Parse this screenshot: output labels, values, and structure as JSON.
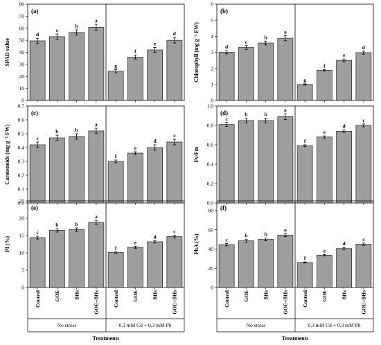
{
  "chart_data": [
    {
      "type": "bar",
      "panel": "(a)",
      "ylabel": "SPAD value",
      "ylim": [
        0,
        80
      ],
      "yticks": [
        0,
        10,
        20,
        30,
        40,
        50,
        60,
        70,
        80
      ],
      "categories": [
        "Control",
        "GOE",
        "BHs",
        "GOE+BHs",
        "Control",
        "GOE",
        "BHs",
        "GOE+BHs"
      ],
      "values": [
        49.5,
        53,
        56.5,
        60.8,
        24.3,
        36,
        42,
        50
      ],
      "errors": [
        2.2,
        2.2,
        2.2,
        2.5,
        1.3,
        1.6,
        2,
        2.3
      ],
      "letters": [
        "d",
        "c",
        "b",
        "a",
        "g",
        "f",
        "e",
        "d"
      ]
    },
    {
      "type": "bar",
      "panel": "(b)",
      "ylabel": "Chlorophyll (mg g⁻¹ FW)",
      "ylim": [
        0,
        6
      ],
      "yticks": [
        0,
        1,
        2,
        3,
        4,
        5,
        6
      ],
      "categories": [
        "Control",
        "GOE",
        "BHs",
        "GOE+BHs",
        "Control",
        "GOE",
        "BHs",
        "GOE+BHs"
      ],
      "values": [
        3.0,
        3.3,
        3.58,
        3.88,
        1.0,
        1.88,
        2.5,
        2.98
      ],
      "errors": [
        0.1,
        0.12,
        0.12,
        0.16,
        0.04,
        0.05,
        0.08,
        0.09
      ],
      "letters": [
        "d",
        "c",
        "b",
        "a",
        "g",
        "f",
        "e",
        "d"
      ]
    },
    {
      "type": "bar",
      "panel": "(c)",
      "ylabel": "Carotenoids (mg g⁻¹ FW)",
      "ylim": [
        0,
        0.7
      ],
      "yticks": [
        0.0,
        0.1,
        0.2,
        0.3,
        0.4,
        0.5,
        0.6,
        0.7
      ],
      "categories": [
        "Control",
        "GOE",
        "BHs",
        "GOE+BHs",
        "Control",
        "GOE",
        "BHs",
        "GOE+BHs"
      ],
      "values": [
        0.42,
        0.47,
        0.48,
        0.52,
        0.3,
        0.36,
        0.4,
        0.44
      ],
      "errors": [
        0.02,
        0.02,
        0.02,
        0.02,
        0.01,
        0.01,
        0.02,
        0.02
      ],
      "letters": [
        "c",
        "b",
        "b",
        "a",
        "f",
        "e",
        "d",
        "c"
      ]
    },
    {
      "type": "bar",
      "panel": "(d)",
      "ylabel": "Fv/Fm",
      "ylim": [
        0,
        1.0
      ],
      "yticks": [
        0.0,
        0.2,
        0.4,
        0.6,
        0.8,
        1.0
      ],
      "categories": [
        "Control",
        "GOE",
        "BHs",
        "GOE+BHs",
        "Control",
        "GOE",
        "BHs",
        "GOE+BHs"
      ],
      "values": [
        0.81,
        0.85,
        0.85,
        0.89,
        0.59,
        0.68,
        0.74,
        0.8
      ],
      "errors": [
        0.02,
        0.025,
        0.025,
        0.03,
        0.01,
        0.012,
        0.012,
        0.015
      ],
      "letters": [
        "c",
        "b",
        "b",
        "a",
        "f",
        "e",
        "d",
        "c"
      ]
    },
    {
      "type": "bar",
      "panel": "(e)",
      "ylabel": "PI (%)",
      "ylim": [
        0,
        25
      ],
      "yticks": [
        0,
        5,
        10,
        15,
        20,
        25
      ],
      "categories": [
        "Control",
        "GOE",
        "BHs",
        "GOE+BHs",
        "Control",
        "GOE",
        "BHs",
        "GOE+BHs"
      ],
      "values": [
        14.4,
        16.5,
        16.7,
        18.8,
        10.1,
        11.6,
        13.2,
        14.7
      ],
      "errors": [
        0.4,
        0.5,
        0.5,
        0.6,
        0.25,
        0.3,
        0.35,
        0.4
      ],
      "letters": [
        "c",
        "b",
        "b",
        "a",
        "f",
        "e",
        "d",
        "c"
      ]
    },
    {
      "type": "bar",
      "panel": "(f)",
      "ylabel": "PhA (%)",
      "ylim": [
        0,
        90
      ],
      "yticks": [
        0,
        20,
        40,
        60,
        80
      ],
      "categories": [
        "Control",
        "GOE",
        "BHs",
        "GOE+BHs",
        "Control",
        "GOE",
        "BHs",
        "GOE+BHs"
      ],
      "values": [
        44.5,
        48.5,
        50,
        54.5,
        26,
        33.5,
        40.5,
        45
      ],
      "errors": [
        1.2,
        1.4,
        1.4,
        1.6,
        0.6,
        0.8,
        1.1,
        1.2
      ],
      "letters": [
        "c",
        "b",
        "b",
        "a",
        "f",
        "e",
        "d",
        "c"
      ]
    }
  ],
  "groups": [
    "No stress",
    "0.3 mM Cd + 0.3 mM Pb"
  ],
  "xlabel": "Treatments",
  "colors": {
    "bar": "#9e9e9e",
    "bar_stroke": "#222222",
    "axis": "#000000"
  }
}
